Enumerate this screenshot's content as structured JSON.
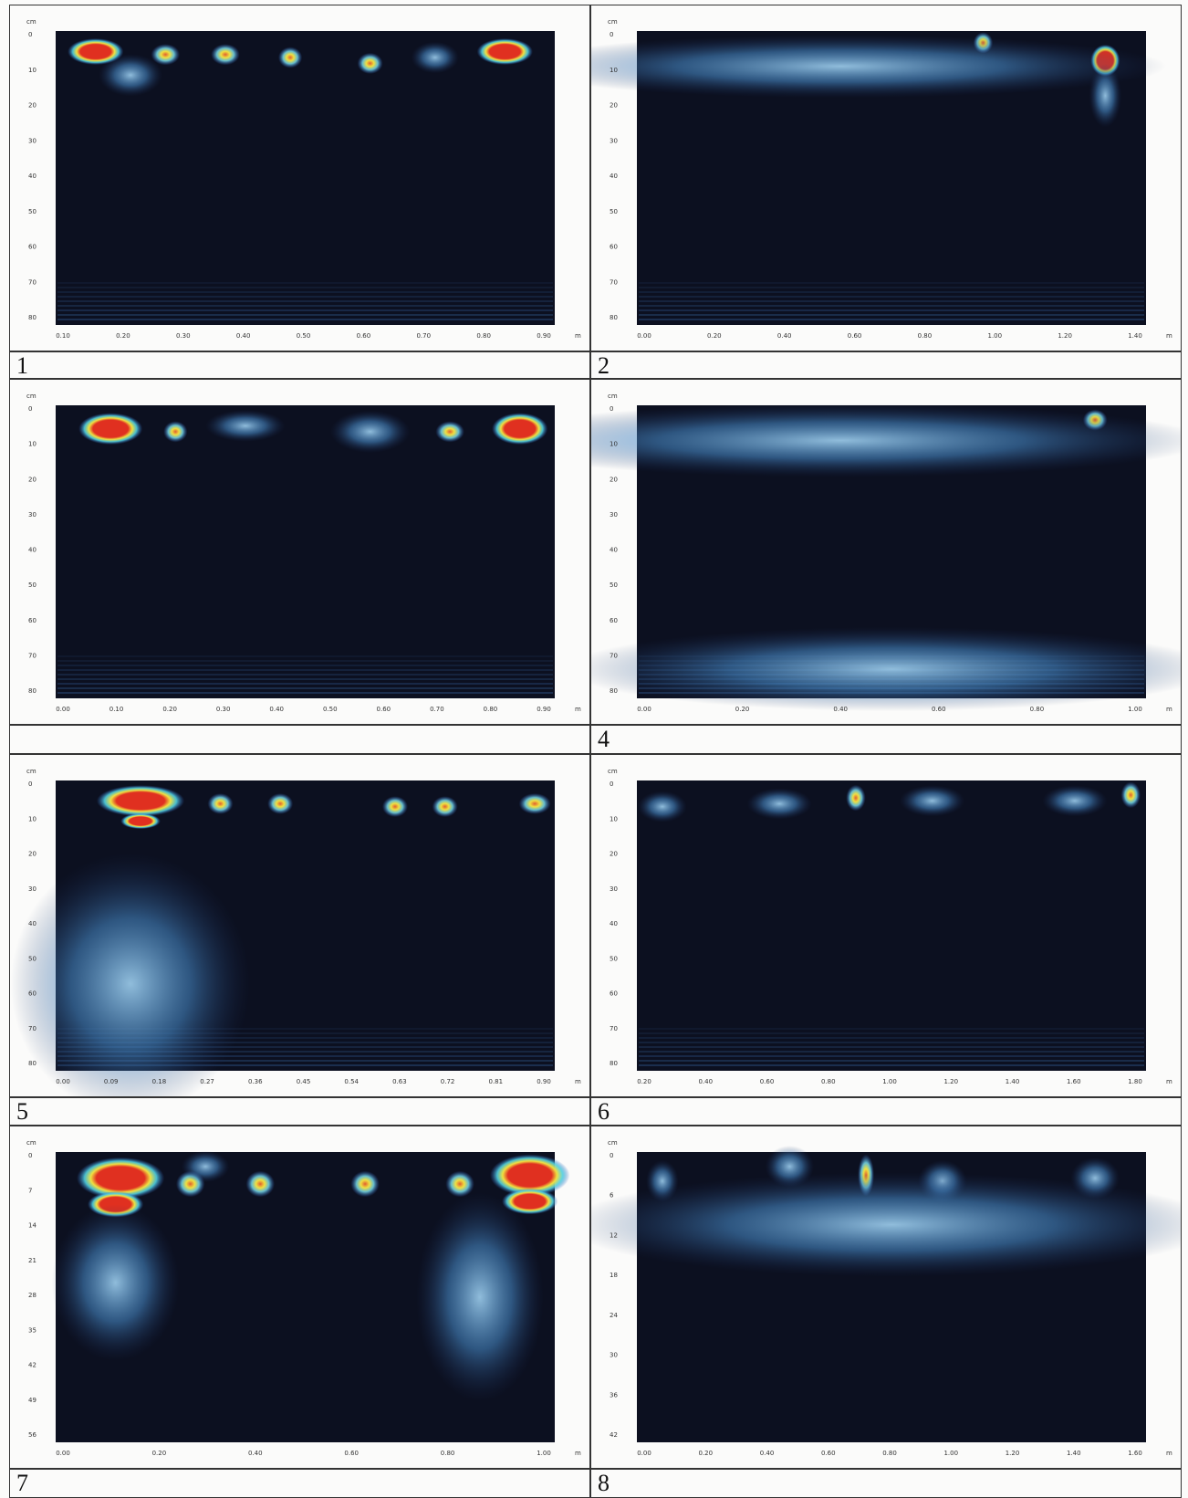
{
  "panels": [
    {
      "label": "1",
      "y_unit": "cm",
      "x_unit": "m",
      "yticks": [
        "0",
        "10",
        "20",
        "30",
        "40",
        "50",
        "60",
        "70",
        "80"
      ],
      "xticks": [
        "0.10",
        "0.20",
        "0.30",
        "0.40",
        "0.50",
        "0.60",
        "0.70",
        "0.80",
        "0.90"
      ]
    },
    {
      "label": "2",
      "y_unit": "cm",
      "x_unit": "m",
      "yticks": [
        "0",
        "10",
        "20",
        "30",
        "40",
        "50",
        "60",
        "70",
        "80"
      ],
      "xticks": [
        "0.00",
        "0.20",
        "0.40",
        "0.60",
        "0.80",
        "1.00",
        "1.20",
        "1.40"
      ]
    },
    {
      "y_unit": "cm",
      "x_unit": "m",
      "yticks": [
        "0",
        "10",
        "20",
        "30",
        "40",
        "50",
        "60",
        "70",
        "80"
      ],
      "xticks": [
        "0.00",
        "0.10",
        "0.20",
        "0.30",
        "0.40",
        "0.50",
        "0.60",
        "0.70",
        "0.80",
        "0.90"
      ]
    },
    {
      "label": "4",
      "y_unit": "cm",
      "x_unit": "m",
      "yticks": [
        "0",
        "10",
        "20",
        "30",
        "40",
        "50",
        "60",
        "70",
        "80"
      ],
      "xticks": [
        "0.00",
        "0.20",
        "0.40",
        "0.60",
        "0.80",
        "1.00"
      ]
    },
    {
      "label": "5",
      "y_unit": "cm",
      "x_unit": "m",
      "yticks": [
        "0",
        "10",
        "20",
        "30",
        "40",
        "50",
        "60",
        "70",
        "80"
      ],
      "xticks": [
        "0.00",
        "0.09",
        "0.18",
        "0.27",
        "0.36",
        "0.45",
        "0.54",
        "0.63",
        "0.72",
        "0.81",
        "0.90"
      ]
    },
    {
      "label": "6",
      "y_unit": "cm",
      "x_unit": "m",
      "yticks": [
        "0",
        "10",
        "20",
        "30",
        "40",
        "50",
        "60",
        "70",
        "80"
      ],
      "xticks": [
        "0.20",
        "0.40",
        "0.60",
        "0.80",
        "1.00",
        "1.20",
        "1.40",
        "1.60",
        "1.80"
      ]
    },
    {
      "label": "7",
      "y_unit": "cm",
      "x_unit": "m",
      "yticks": [
        "0",
        "7",
        "14",
        "21",
        "28",
        "35",
        "42",
        "49",
        "56"
      ],
      "xticks": [
        "0.00",
        "0.20",
        "0.40",
        "0.60",
        "0.80",
        "1.00"
      ]
    },
    {
      "label": "8",
      "y_unit": "cm",
      "x_unit": "m",
      "yticks": [
        "0",
        "6",
        "12",
        "18",
        "24",
        "30",
        "36",
        "42"
      ],
      "xticks": [
        "0.00",
        "0.20",
        "0.40",
        "0.60",
        "0.80",
        "1.00",
        "1.20",
        "1.40",
        "1.60"
      ]
    }
  ]
}
